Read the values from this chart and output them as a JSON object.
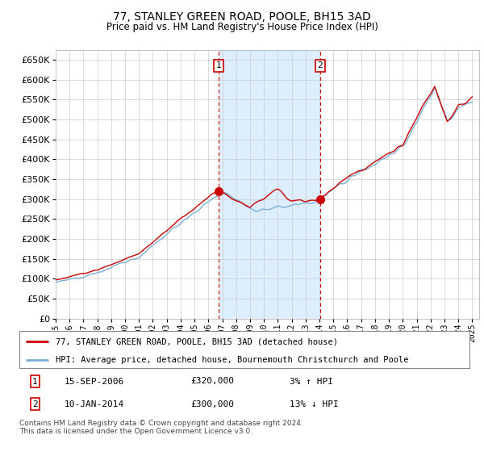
{
  "title": "77, STANLEY GREEN ROAD, POOLE, BH15 3AD",
  "subtitle": "Price paid vs. HM Land Registry's House Price Index (HPI)",
  "ylim": [
    0,
    675000
  ],
  "yticks": [
    0,
    50000,
    100000,
    150000,
    200000,
    250000,
    300000,
    350000,
    400000,
    450000,
    500000,
    550000,
    600000,
    650000
  ],
  "x_start_year": 1995,
  "x_end_year": 2025,
  "sale1_date": 2006.72,
  "sale1_price": 320000,
  "sale1_label": "1",
  "sale2_date": 2014.04,
  "sale2_price": 300000,
  "sale2_label": "2",
  "sale_marker_color": "#cc0000",
  "hpi_line_color": "#7bafd4",
  "sale_line_color": "#cc0000",
  "grid_color": "#cccccc",
  "chart_bg_color": "#ffffff",
  "shade_color": "#ddeeff",
  "legend1_text": "77, STANLEY GREEN ROAD, POOLE, BH15 3AD (detached house)",
  "legend2_text": "HPI: Average price, detached house, Bournemouth Christchurch and Poole",
  "table_row1": [
    "1",
    "15-SEP-2006",
    "£320,000",
    "3% ↑ HPI"
  ],
  "table_row2": [
    "2",
    "10-JAN-2014",
    "£300,000",
    "13% ↓ HPI"
  ],
  "footnote": "Contains HM Land Registry data © Crown copyright and database right 2024.\nThis data is licensed under the Open Government Licence v3.0.",
  "vline_color": "#cc0000",
  "box_edge_color": "#cc0000"
}
